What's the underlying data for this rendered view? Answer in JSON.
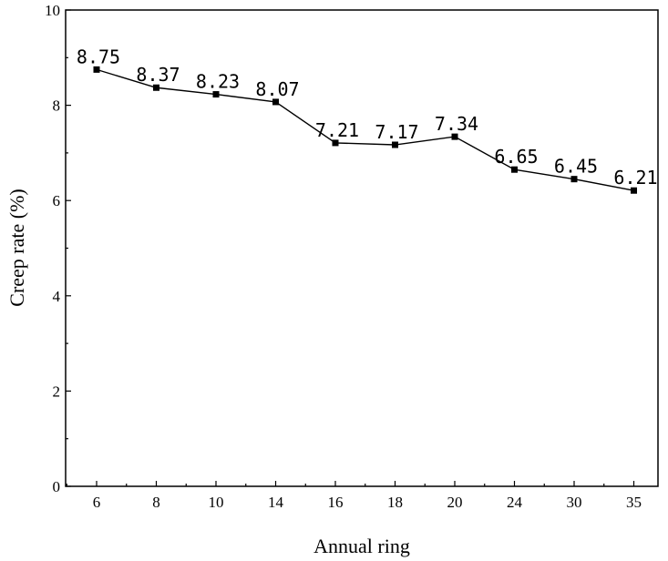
{
  "chart_data": {
    "type": "line",
    "title": "",
    "xlabel": "Annual ring",
    "ylabel": "Creep rate (%)",
    "categories": [
      "6",
      "8",
      "10",
      "14",
      "16",
      "18",
      "20",
      "24",
      "30",
      "35"
    ],
    "series": [
      {
        "values": [
          8.75,
          8.37,
          8.23,
          8.07,
          7.21,
          7.17,
          7.34,
          6.65,
          6.45,
          6.21
        ],
        "labels": [
          "8.75",
          "8.37",
          "8.23",
          "8.07",
          "7.21",
          "7.17",
          "7.34",
          "6.65",
          "6.45",
          "6.21"
        ]
      }
    ],
    "ylim": [
      0,
      10
    ],
    "yticks": [
      "0",
      "2",
      "4",
      "6",
      "8",
      "10"
    ],
    "grid": false,
    "marker": "square",
    "line_color": "#000000"
  }
}
